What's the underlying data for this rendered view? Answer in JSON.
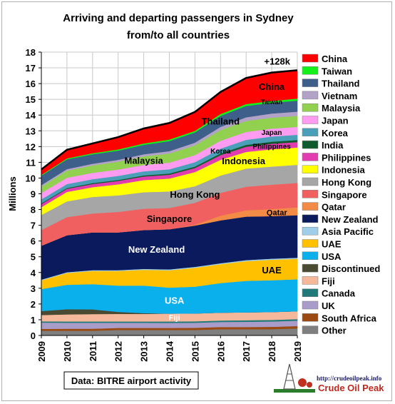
{
  "chart_data": {
    "type": "area",
    "stacked": true,
    "title": [
      "Arriving and departing passengers in Sydney",
      "from/to all countries"
    ],
    "ylabel": "Millions",
    "xlabel": "",
    "x": [
      2009,
      2010,
      2011,
      2012,
      2013,
      2014,
      2015,
      2016,
      2017,
      2018,
      2019
    ],
    "ylim": [
      0,
      18
    ],
    "yticks": [
      0,
      1,
      2,
      3,
      4,
      5,
      6,
      7,
      8,
      9,
      10,
      11,
      12,
      13,
      14,
      15,
      16,
      17,
      18
    ],
    "grid": true,
    "legend_position": "right",
    "total_annotation": "+128k",
    "series": [
      {
        "name": "Other",
        "color": "#7f7f7f",
        "values": [
          0.3,
          0.3,
          0.3,
          0.35,
          0.35,
          0.35,
          0.35,
          0.4,
          0.4,
          0.4,
          0.45
        ]
      },
      {
        "name": "South Africa",
        "color": "#9b4a12",
        "values": [
          0.12,
          0.13,
          0.13,
          0.13,
          0.13,
          0.13,
          0.14,
          0.14,
          0.14,
          0.15,
          0.15
        ]
      },
      {
        "name": "UK",
        "color": "#a99cc9",
        "values": [
          0.4,
          0.38,
          0.38,
          0.33,
          0.33,
          0.32,
          0.32,
          0.32,
          0.33,
          0.34,
          0.34
        ]
      },
      {
        "name": "Canada",
        "color": "#1f7a78",
        "values": [
          0.08,
          0.08,
          0.08,
          0.08,
          0.08,
          0.09,
          0.09,
          0.09,
          0.1,
          0.1,
          0.1
        ]
      },
      {
        "name": "Fiji",
        "color": "#f5b89a",
        "values": [
          0.4,
          0.45,
          0.47,
          0.48,
          0.48,
          0.5,
          0.5,
          0.5,
          0.5,
          0.5,
          0.5
        ]
      },
      {
        "name": "Discontinued",
        "color": "#4a4a32",
        "values": [
          0.25,
          0.33,
          0.3,
          0.13,
          0.05,
          0.0,
          0.0,
          0.0,
          0.0,
          0.0,
          0.0
        ]
      },
      {
        "name": "USA",
        "color": "#0ab0ec",
        "values": [
          1.4,
          1.55,
          1.6,
          1.67,
          1.75,
          1.65,
          1.7,
          1.88,
          2.0,
          2.02,
          2.03
        ]
      },
      {
        "name": "UAE",
        "color": "#ffc000",
        "values": [
          0.55,
          0.75,
          0.84,
          0.93,
          1.0,
          1.1,
          1.2,
          1.2,
          1.25,
          1.3,
          1.3
        ]
      },
      {
        "name": "Asia Pacific",
        "color": "#9fcfe8",
        "values": [
          0.05,
          0.05,
          0.05,
          0.05,
          0.06,
          0.06,
          0.06,
          0.06,
          0.07,
          0.07,
          0.07
        ]
      },
      {
        "name": "New Zealand",
        "color": "#0b1a5c",
        "values": [
          2.15,
          2.35,
          2.4,
          2.4,
          2.47,
          2.55,
          2.62,
          2.72,
          2.76,
          2.7,
          2.7
        ]
      },
      {
        "name": "Qatar",
        "color": "#f28b46",
        "values": [
          0.0,
          0.0,
          0.0,
          0.0,
          0.0,
          0.0,
          0.05,
          0.3,
          0.4,
          0.45,
          0.5
        ]
      },
      {
        "name": "Singapore",
        "color": "#f06060",
        "values": [
          1.0,
          1.15,
          1.2,
          1.3,
          1.35,
          1.35,
          1.4,
          1.45,
          1.5,
          1.55,
          1.55
        ]
      },
      {
        "name": "Hong Kong",
        "color": "#a6a6a6",
        "values": [
          0.95,
          1.0,
          1.05,
          1.05,
          1.05,
          1.05,
          1.05,
          1.1,
          1.15,
          1.15,
          1.15
        ]
      },
      {
        "name": "Indonesia",
        "color": "#ffff00",
        "values": [
          0.5,
          0.6,
          0.62,
          0.7,
          0.77,
          0.82,
          0.9,
          1.0,
          1.06,
          1.1,
          1.1
        ]
      },
      {
        "name": "Philippines",
        "color": "#e23db0",
        "values": [
          0.2,
          0.2,
          0.2,
          0.22,
          0.23,
          0.24,
          0.26,
          0.3,
          0.33,
          0.35,
          0.35
        ]
      },
      {
        "name": "India",
        "color": "#0e5c2e",
        "values": [
          0.05,
          0.05,
          0.06,
          0.06,
          0.07,
          0.08,
          0.09,
          0.11,
          0.12,
          0.13,
          0.13
        ]
      },
      {
        "name": "Korea",
        "color": "#4aa0b8",
        "values": [
          0.25,
          0.25,
          0.25,
          0.26,
          0.26,
          0.27,
          0.28,
          0.3,
          0.32,
          0.33,
          0.33
        ]
      },
      {
        "name": "Japan",
        "color": "#ff9cf2",
        "values": [
          0.4,
          0.4,
          0.4,
          0.4,
          0.4,
          0.42,
          0.45,
          0.5,
          0.5,
          0.5,
          0.5
        ]
      },
      {
        "name": "Malaysia",
        "color": "#92d050",
        "values": [
          0.4,
          0.45,
          0.47,
          0.5,
          0.55,
          0.58,
          0.62,
          0.68,
          0.7,
          0.7,
          0.7
        ]
      },
      {
        "name": "Vietnam",
        "color": "#b3a2c7",
        "values": [
          0.1,
          0.1,
          0.11,
          0.12,
          0.13,
          0.15,
          0.17,
          0.2,
          0.23,
          0.26,
          0.27
        ]
      },
      {
        "name": "Thailand",
        "color": "#3e5f8a",
        "values": [
          0.6,
          0.62,
          0.6,
          0.58,
          0.6,
          0.64,
          0.65,
          0.7,
          0.72,
          0.68,
          0.7
        ]
      },
      {
        "name": "Taiwan",
        "color": "#15f01a",
        "values": [
          0.05,
          0.06,
          0.07,
          0.08,
          0.09,
          0.1,
          0.1,
          0.12,
          0.12,
          0.12,
          0.13
        ]
      },
      {
        "name": "China",
        "color": "#ff0000",
        "values": [
          0.35,
          0.55,
          0.62,
          0.78,
          0.95,
          1.05,
          1.2,
          1.4,
          1.66,
          1.8,
          1.8
        ]
      }
    ],
    "annotations": [
      {
        "text": "China",
        "series": "China",
        "x": 2018,
        "color": "#000000",
        "size": 13
      },
      {
        "text": "Taiwan",
        "series": "Taiwan",
        "x": 2018,
        "color": "#000000",
        "size": 9
      },
      {
        "text": "Thailand",
        "series": "Thailand",
        "x": 2016,
        "color": "#000000",
        "size": 13
      },
      {
        "text": "Japan",
        "series": "Japan",
        "x": 2018,
        "color": "#000000",
        "size": 10
      },
      {
        "text": "Korea",
        "series": "Korea",
        "x": 2016,
        "color": "#000000",
        "size": 10
      },
      {
        "text": "Philippines",
        "series": "Philippines",
        "x": 2018,
        "color": "#000000",
        "size": 10
      },
      {
        "text": "Malaysia",
        "series": "Malaysia",
        "x": 2013,
        "color": "#000000",
        "size": 13
      },
      {
        "text": "Indonesia",
        "series": "Indonesia",
        "x": 2016.9,
        "color": "#000000",
        "size": 13
      },
      {
        "text": "Hong Kong",
        "series": "Hong Kong",
        "x": 2015,
        "color": "#000000",
        "size": 13
      },
      {
        "text": "Singapore",
        "series": "Singapore",
        "x": 2014,
        "color": "#000000",
        "size": 13
      },
      {
        "text": "Qatar",
        "series": "Qatar",
        "x": 2018.2,
        "color": "#000000",
        "size": 11
      },
      {
        "text": "New Zealand",
        "series": "New Zealand",
        "x": 2013.5,
        "color": "#ffffff",
        "size": 13
      },
      {
        "text": "UAE",
        "series": "UAE",
        "x": 2018,
        "color": "#000000",
        "size": 13
      },
      {
        "text": "USA",
        "series": "USA",
        "x": 2014.2,
        "color": "#ffffff",
        "size": 13
      },
      {
        "text": "Fiji",
        "series": "Fiji",
        "x": 2014.2,
        "color": "#ffffff",
        "size": 11
      }
    ],
    "source": "Data: BITRE airport activity"
  },
  "logo": {
    "url_text": "http://crudeoilpeak.info",
    "name": "Crude Oil Peak"
  }
}
